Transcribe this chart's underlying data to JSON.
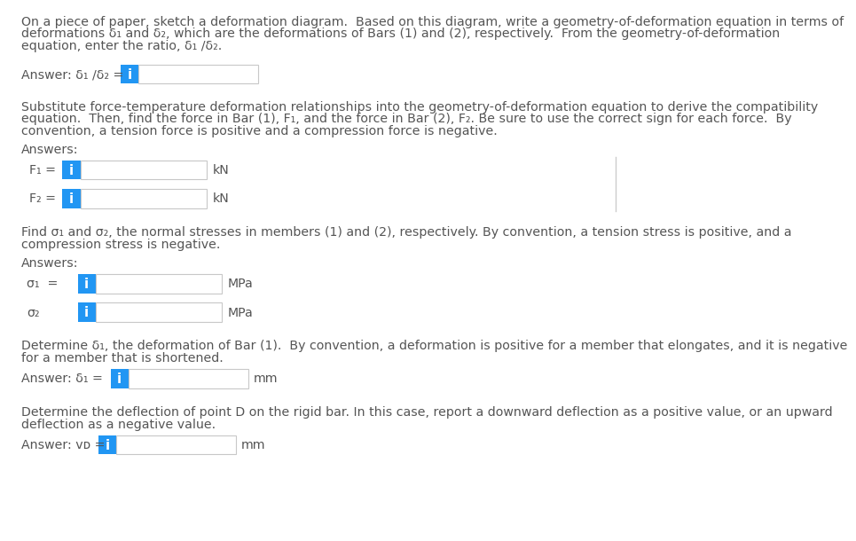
{
  "bg_color": "#ffffff",
  "text_color": "#555555",
  "blue_color": "#2196F3",
  "box_border_color": "#c8c8c8",
  "box_fill_color": "#ffffff",
  "body_fontsize": 10.2,
  "para1_lines": [
    "On a piece of paper, sketch a deformation diagram.  Based on this diagram, write a geometry-of-deformation equation in terms of",
    "deformations δ₁ and δ₂, which are the deformations of Bars (1) and (2), respectively.  From the geometry-of-deformation",
    "equation, enter the ratio, δ₁ /δ₂."
  ],
  "answer1_label": "Answer: δ₁ /δ₂ = ",
  "para2_lines": [
    "Substitute force-temperature deformation relationships into the geometry-of-deformation equation to derive the compatibility",
    "equation.  Then, find the force in Bar (1), F₁, and the force in Bar (2), F₂. Be sure to use the correct sign for each force.  By",
    "convention, a tension force is positive and a compression force is negative."
  ],
  "answers_label": "Answers:",
  "f1_label": "F₁ = ",
  "f1_unit": "kN",
  "f2_label": "F₂ = ",
  "f2_unit": "kN",
  "para3_lines": [
    "Find σ₁ and σ₂, the normal stresses in members (1) and (2), respectively. By convention, a tension stress is positive, and a",
    "compression stress is negative."
  ],
  "s1_label": "σ₁  = ",
  "s1_unit": "MPa",
  "s2_label": "σ₂",
  "s2_unit": "MPa",
  "para4_lines": [
    "Determine δ₁, the deformation of Bar (1).  By convention, a deformation is positive for a member that elongates, and it is negative",
    "for a member that is shortened."
  ],
  "answer4_label": "Answer: δ₁ =  ",
  "answer4_unit": "mm",
  "para5_lines": [
    "Determine the deflection of point D on the rigid bar. In this case, report a downward deflection as a positive value, or an upward",
    "deflection as a negative value."
  ],
  "answer5_label": "Answer: vᴅ = ",
  "answer5_unit": "mm"
}
